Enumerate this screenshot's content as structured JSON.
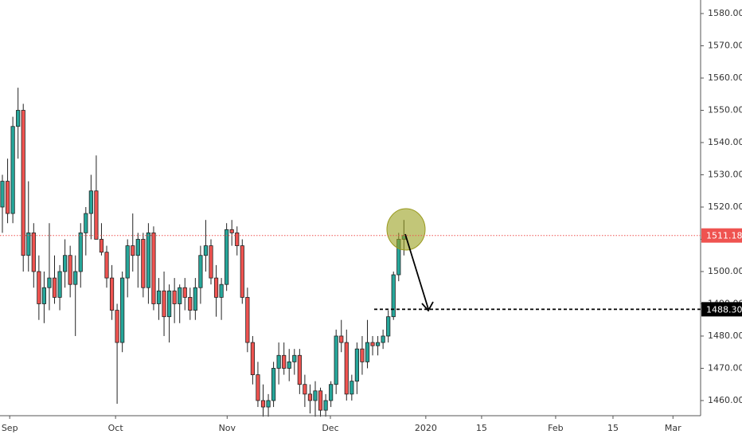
{
  "chart_data": {
    "type": "candlestick",
    "x": [
      0,
      1,
      2,
      3,
      4,
      5,
      6,
      7,
      8,
      9,
      10,
      11,
      12,
      13,
      14,
      15,
      16,
      17,
      18,
      19,
      20,
      21,
      22,
      23,
      24,
      25,
      26,
      27,
      28,
      29,
      30,
      31,
      32,
      33,
      34,
      35,
      36,
      37,
      38,
      39,
      40,
      41,
      42,
      43,
      44,
      45,
      46,
      47,
      48,
      49,
      50,
      51,
      52,
      53,
      54,
      55,
      56,
      57,
      58,
      59,
      60,
      61,
      62,
      63,
      64,
      65,
      66,
      67,
      68,
      69,
      70,
      71,
      72,
      73,
      74,
      75,
      76,
      77
    ],
    "open": [
      1520,
      1528,
      1518,
      1545,
      1550,
      1505,
      1512,
      1500,
      1490,
      1495,
      1498,
      1492,
      1500,
      1505,
      1496,
      1500,
      1512,
      1518,
      1525,
      1510,
      1506,
      1498,
      1488,
      1478,
      1498,
      1508,
      1505,
      1510,
      1495,
      1512,
      1490,
      1494,
      1486,
      1494,
      1490,
      1495,
      1492,
      1488,
      1495,
      1505,
      1508,
      1498,
      1492,
      1496,
      1513,
      1512,
      1508,
      1492,
      1478,
      1468,
      1460,
      1458,
      1460,
      1470,
      1474,
      1470,
      1472,
      1474,
      1465,
      1462,
      1460,
      1463,
      1457,
      1460,
      1465,
      1480,
      1478,
      1462,
      1466,
      1476,
      1472,
      1478,
      1477,
      1478,
      1480,
      1486,
      1499,
      1510
    ],
    "high": [
      1530,
      1535,
      1548,
      1557,
      1552,
      1528,
      1515,
      1505,
      1500,
      1515,
      1505,
      1502,
      1510,
      1508,
      1505,
      1515,
      1520,
      1530,
      1536,
      1515,
      1508,
      1502,
      1490,
      1500,
      1510,
      1518,
      1512,
      1512,
      1515,
      1514,
      1498,
      1500,
      1496,
      1498,
      1496,
      1498,
      1495,
      1498,
      1508,
      1516,
      1510,
      1502,
      1498,
      1515,
      1516,
      1514,
      1510,
      1495,
      1480,
      1472,
      1465,
      1462,
      1472,
      1478,
      1478,
      1476,
      1476,
      1476,
      1468,
      1465,
      1466,
      1464,
      1462,
      1466,
      1482,
      1485,
      1482,
      1468,
      1478,
      1480,
      1485,
      1480,
      1480,
      1482,
      1488,
      1500,
      1512,
      1516
    ],
    "low": [
      1512,
      1515,
      1515,
      1535,
      1500,
      1500,
      1495,
      1485,
      1484,
      1488,
      1490,
      1488,
      1495,
      1492,
      1480,
      1495,
      1505,
      1510,
      1510,
      1505,
      1495,
      1485,
      1459,
      1475,
      1492,
      1500,
      1495,
      1492,
      1490,
      1488,
      1485,
      1480,
      1478,
      1484,
      1484,
      1488,
      1485,
      1485,
      1490,
      1500,
      1496,
      1486,
      1485,
      1494,
      1508,
      1505,
      1490,
      1475,
      1465,
      1458,
      1455,
      1455,
      1458,
      1465,
      1468,
      1466,
      1468,
      1462,
      1458,
      1456,
      1455,
      1455,
      1455,
      1458,
      1462,
      1475,
      1460,
      1460,
      1462,
      1468,
      1470,
      1474,
      1474,
      1476,
      1478,
      1485,
      1497,
      1505
    ],
    "close": [
      1528,
      1518,
      1545,
      1550,
      1505,
      1512,
      1500,
      1490,
      1495,
      1498,
      1492,
      1500,
      1505,
      1496,
      1500,
      1512,
      1518,
      1525,
      1510,
      1506,
      1498,
      1488,
      1478,
      1498,
      1508,
      1505,
      1510,
      1495,
      1512,
      1490,
      1494,
      1486,
      1494,
      1490,
      1495,
      1492,
      1488,
      1495,
      1505,
      1508,
      1498,
      1492,
      1496,
      1513,
      1512,
      1508,
      1492,
      1478,
      1468,
      1460,
      1458,
      1460,
      1470,
      1474,
      1470,
      1472,
      1474,
      1465,
      1462,
      1460,
      1463,
      1457,
      1460,
      1465,
      1480,
      1478,
      1462,
      1466,
      1476,
      1472,
      1478,
      1477,
      1478,
      1480,
      1486,
      1499,
      1510,
      1511.18
    ],
    "up_color": "#26a69a",
    "down_color": "#ef5350",
    "xlim": [
      -0.46,
      133.9
    ],
    "xticks": [
      {
        "value": 1.4,
        "label": "Sep"
      },
      {
        "value": 21.7,
        "label": "Oct"
      },
      {
        "value": 43.1,
        "label": "Nov"
      },
      {
        "value": 62.9,
        "label": "Dec"
      },
      {
        "value": 81.2,
        "label": "2020"
      },
      {
        "value": 91.9,
        "label": "15"
      },
      {
        "value": 106.1,
        "label": "Feb"
      },
      {
        "value": 117.1,
        "label": "15"
      },
      {
        "value": 128.6,
        "label": "Mar"
      }
    ],
    "ylim": [
      1455.3,
      1584.2
    ],
    "yticks": [
      {
        "value": 1460,
        "label": "1460.00"
      },
      {
        "value": 1470,
        "label": "1470.00"
      },
      {
        "value": 1480,
        "label": "1480.00"
      },
      {
        "value": 1490,
        "label": "1490.00"
      },
      {
        "value": 1500,
        "label": "1500.00"
      },
      {
        "value": 1510,
        "label": "1510.00"
      },
      {
        "value": 1520,
        "label": "1520.00"
      },
      {
        "value": 1530,
        "label": "1530.00"
      },
      {
        "value": 1540,
        "label": "1540.00"
      },
      {
        "value": 1550,
        "label": "1550.00"
      },
      {
        "value": 1560,
        "label": "1560.00"
      },
      {
        "value": 1570,
        "label": "1570.00"
      },
      {
        "value": 1580,
        "label": "1580.00"
      }
    ],
    "price_lines": [
      {
        "value": 1511.18,
        "label": "1511.18",
        "color": "#ef5350",
        "style": "dotted"
      },
      {
        "value": 1488.3,
        "label": "1488.30",
        "color": "#000000",
        "style": "dashed"
      }
    ]
  }
}
